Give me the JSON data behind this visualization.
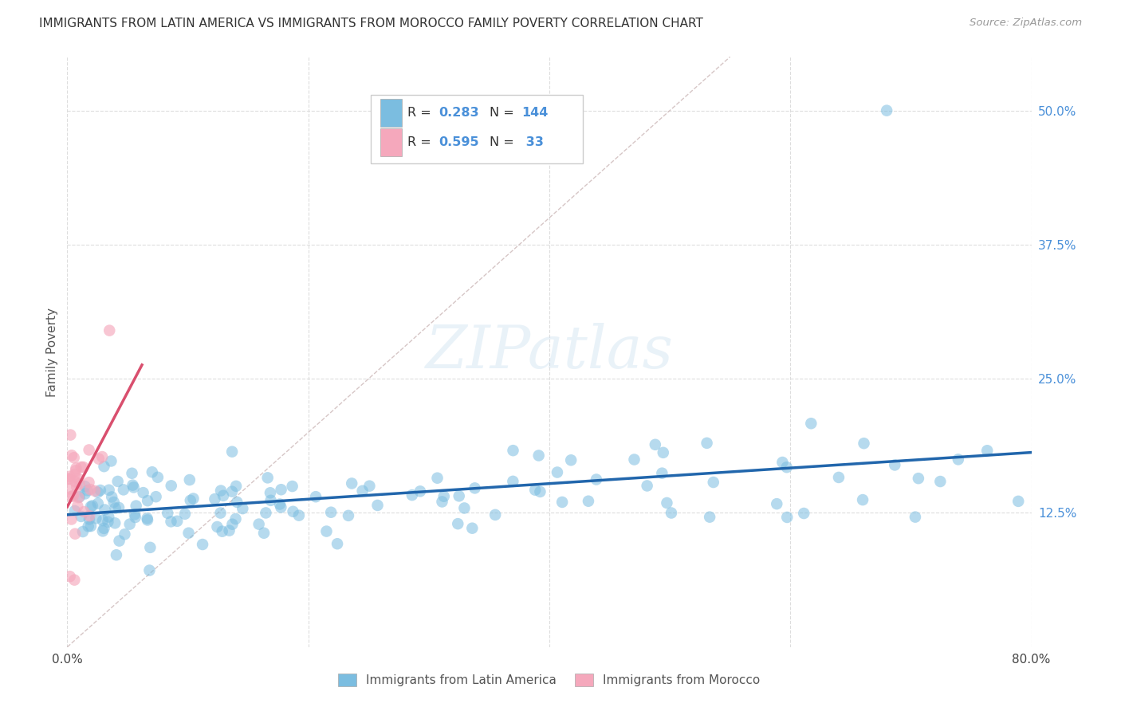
{
  "title": "IMMIGRANTS FROM LATIN AMERICA VS IMMIGRANTS FROM MOROCCO FAMILY POVERTY CORRELATION CHART",
  "source": "Source: ZipAtlas.com",
  "ylabel": "Family Poverty",
  "watermark": "ZIPatlas",
  "blue_R": 0.283,
  "blue_N": 144,
  "pink_R": 0.595,
  "pink_N": 33,
  "blue_color": "#7bbde0",
  "pink_color": "#f5a8bc",
  "blue_line_color": "#2166ac",
  "pink_line_color": "#d94f6e",
  "dashed_line_color": "#ccb8b8",
  "background_color": "#ffffff",
  "grid_color": "#dddddd",
  "xmin": 0.0,
  "xmax": 0.8,
  "ymin": 0.0,
  "ymax": 0.55,
  "legend_label_blue": "Immigrants from Latin America",
  "legend_label_pink": "Immigrants from Morocco"
}
